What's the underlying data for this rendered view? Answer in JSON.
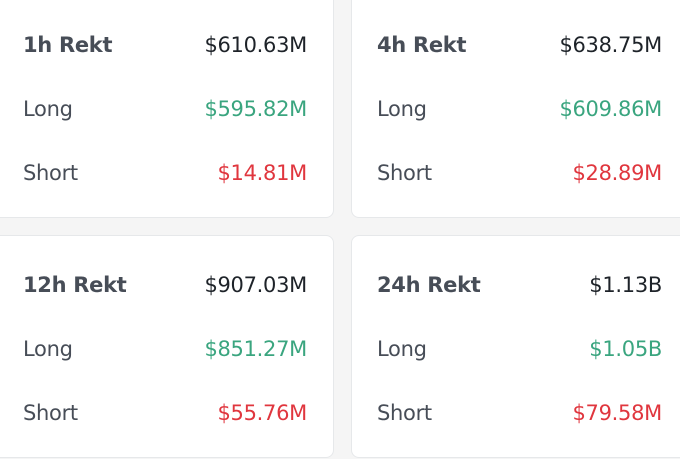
{
  "cards": [
    {
      "title": "1h Rekt",
      "total": "$610.63M",
      "long_label": "Long",
      "long": "$595.82M",
      "short_label": "Short",
      "short": "$14.81M"
    },
    {
      "title": "4h Rekt",
      "total": "$638.75M",
      "long_label": "Long",
      "long": "$609.86M",
      "short_label": "Short",
      "short": "$28.89M"
    },
    {
      "title": "12h Rekt",
      "total": "$907.03M",
      "long_label": "Long",
      "long": "$851.27M",
      "short_label": "Short",
      "short": "$55.76M"
    },
    {
      "title": "24h Rekt",
      "total": "$1.13B",
      "long_label": "Long",
      "long": "$1.05B",
      "short_label": "Short",
      "short": "$79.58M"
    }
  ],
  "colors": {
    "long": "#3aa57f",
    "short": "#e0363e"
  }
}
